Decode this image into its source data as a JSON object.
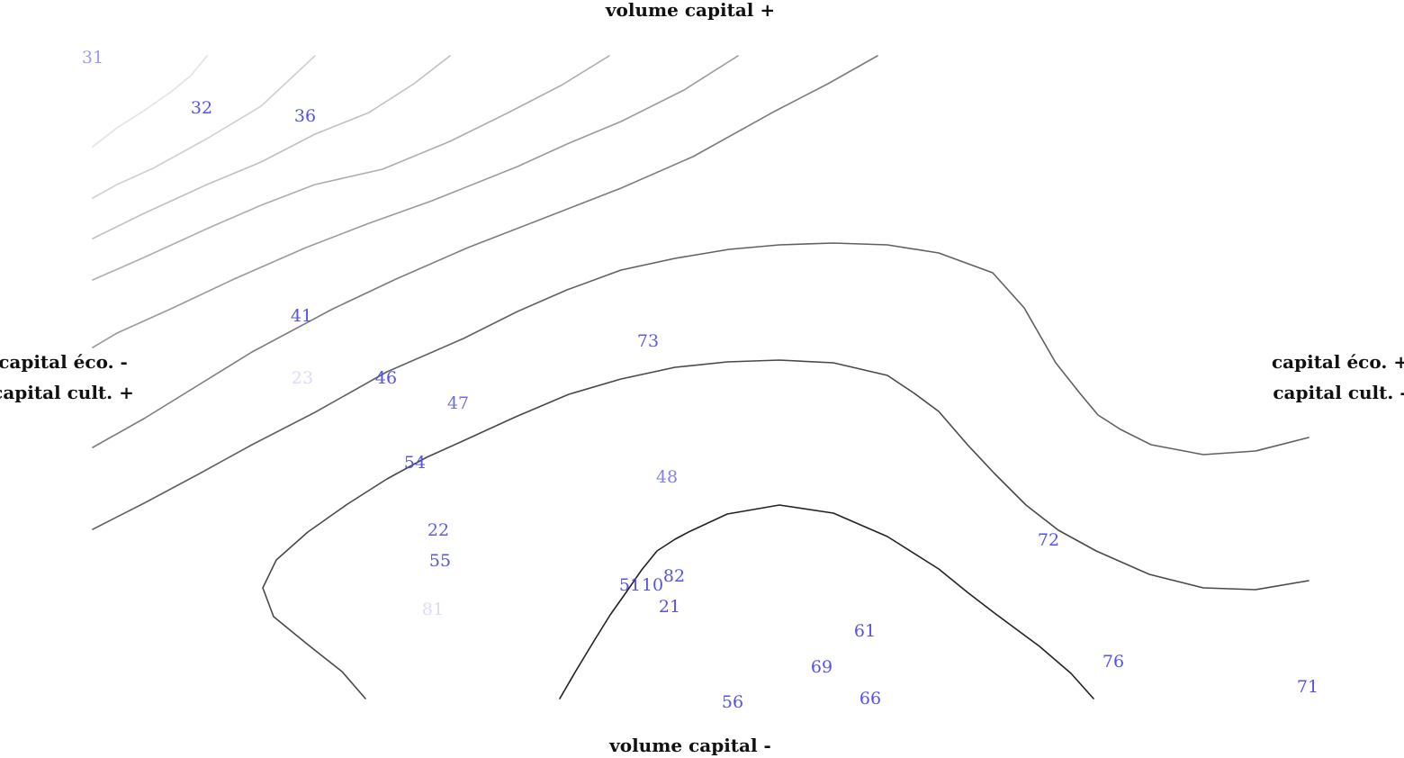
{
  "axes": {
    "top": "volume capital +",
    "bottom": "volume capital -",
    "left_line1": "capital éco. -",
    "left_line2": "capital cult. +",
    "right_line1": "capital éco. +",
    "right_line2": "capital cult. -"
  },
  "colors": {
    "point_label": "#4a4ae8",
    "contour_light": "#d8d8d8",
    "contour_dark": "#222222",
    "axis_text": "#111111"
  },
  "point_labels": [
    {
      "text": "31",
      "opacity": 0.55
    },
    {
      "text": "32",
      "opacity": 0.95
    },
    {
      "text": "36",
      "opacity": 0.95
    },
    {
      "text": "41",
      "opacity": 0.95
    },
    {
      "text": "23",
      "opacity": 0.2
    },
    {
      "text": "46",
      "opacity": 0.95
    },
    {
      "text": "47",
      "opacity": 0.8
    },
    {
      "text": "73",
      "opacity": 0.9
    },
    {
      "text": "54",
      "opacity": 0.95
    },
    {
      "text": "48",
      "opacity": 0.7
    },
    {
      "text": "22",
      "opacity": 0.9
    },
    {
      "text": "55",
      "opacity": 0.95
    },
    {
      "text": "81",
      "opacity": 0.2
    },
    {
      "text": "51",
      "opacity": 0.95
    },
    {
      "text": "10",
      "opacity": 0.95
    },
    {
      "text": "82",
      "opacity": 0.95
    },
    {
      "text": "21",
      "opacity": 0.95
    },
    {
      "text": "72",
      "opacity": 0.95
    },
    {
      "text": "61",
      "opacity": 0.95
    },
    {
      "text": "69",
      "opacity": 0.95
    },
    {
      "text": "76",
      "opacity": 0.95
    },
    {
      "text": "56",
      "opacity": 0.95
    },
    {
      "text": "66",
      "opacity": 0.95
    },
    {
      "text": "71",
      "opacity": 0.95
    }
  ]
}
